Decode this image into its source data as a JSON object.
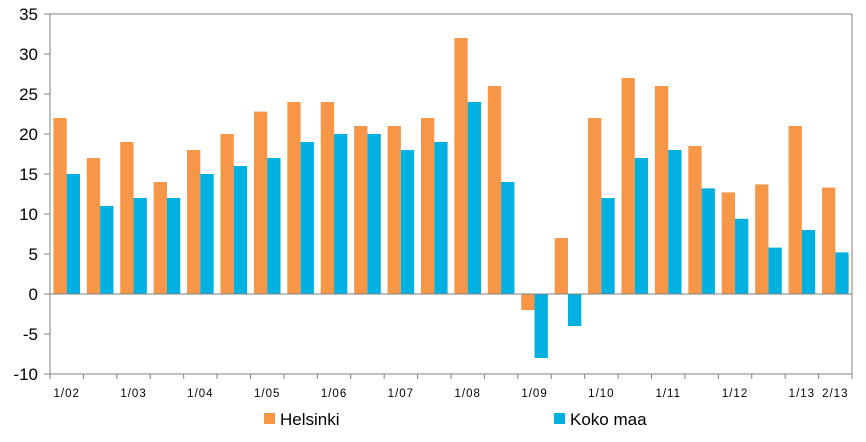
{
  "chart_data": {
    "type": "bar",
    "categories": [
      "1/02",
      "",
      "1/03",
      "",
      "1/04",
      "",
      "1/05",
      "",
      "1/06",
      "",
      "1/07",
      "",
      "1/08",
      "",
      "1/09",
      "",
      "1/10",
      "",
      "1/11",
      "",
      "1/12",
      "",
      "1/13",
      "2/13"
    ],
    "x_tick_labels": [
      "1/02",
      "1/03",
      "1/04",
      "1/05",
      "1/06",
      "1/07",
      "1/08",
      "1/09",
      "1/10",
      "1/11",
      "1/12",
      "1/13",
      "2/13"
    ],
    "series": [
      {
        "name": "Helsinki",
        "color": "#f79646",
        "values": [
          22,
          17,
          19,
          14,
          18,
          20,
          22.8,
          24,
          24,
          21,
          21,
          22,
          32,
          26,
          -2,
          7,
          22,
          27,
          26,
          18.5,
          12.7,
          13.7,
          21,
          13.3
        ]
      },
      {
        "name": "Koko maa",
        "color": "#00b0e0",
        "values": [
          15,
          11,
          12,
          12,
          15,
          16,
          17,
          19,
          20,
          20,
          18,
          19,
          24,
          14,
          -8,
          -4,
          12,
          17,
          18,
          13.2,
          9.4,
          5.8,
          8,
          5.2
        ]
      }
    ],
    "ylim": [
      -10,
      35
    ],
    "y_ticks": [
      35,
      30,
      25,
      20,
      15,
      10,
      5,
      0,
      -5,
      -10
    ],
    "grid": false,
    "legend": "bottom"
  }
}
